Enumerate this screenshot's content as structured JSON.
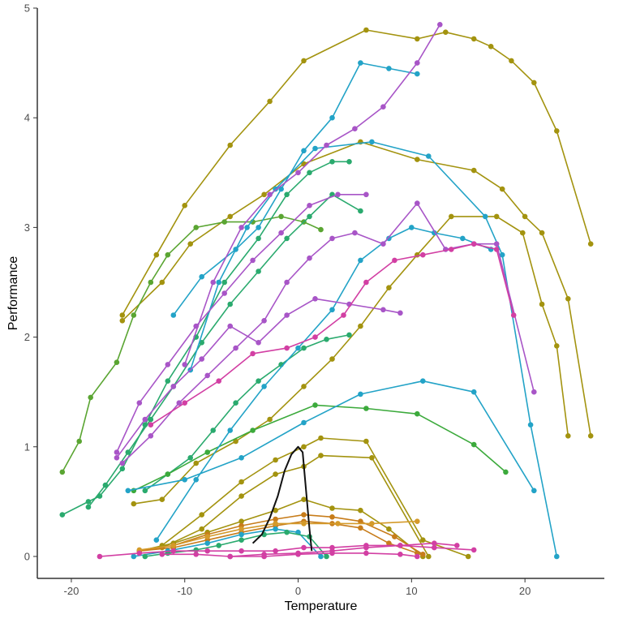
{
  "chart_data": {
    "type": "line",
    "title": "",
    "xlabel": "Temperature",
    "ylabel": "Performance",
    "xlim": [
      -23,
      27
    ],
    "ylim": [
      -0.2,
      5.0
    ],
    "x_ticks": [
      -20,
      -10,
      0,
      10,
      20
    ],
    "y_ticks": [
      0,
      1,
      2,
      3,
      4,
      5
    ],
    "grid": false,
    "legend": "none",
    "axis_color": "#333333",
    "series": [
      {
        "color": "#A3930F",
        "x": [
          -15.5,
          -12.5,
          -10,
          -6,
          -2.5,
          0.5,
          6,
          10.5,
          13,
          15.5,
          17,
          18.8,
          20.8,
          22.8,
          25.8
        ],
        "y": [
          2.2,
          2.75,
          3.2,
          3.75,
          4.15,
          4.52,
          4.8,
          4.72,
          4.78,
          4.72,
          4.65,
          4.52,
          4.32,
          3.88,
          2.85
        ]
      },
      {
        "color": "#A3930F",
        "x": [
          -15.5,
          -12,
          -9.5,
          -6,
          -3,
          0.5,
          5.5,
          10.5,
          15.5,
          18,
          20,
          21.5,
          23.8,
          25.8
        ],
        "y": [
          2.15,
          2.5,
          2.85,
          3.1,
          3.3,
          3.58,
          3.78,
          3.62,
          3.52,
          3.35,
          3.1,
          2.95,
          2.35,
          1.1
        ]
      },
      {
        "color": "#A3930F",
        "x": [
          -14.5,
          -12,
          -9,
          -5.5,
          -2.5,
          0.5,
          3,
          5.5,
          8,
          10.5,
          13.5,
          17.5,
          19.8,
          21.5,
          22.8,
          23.8
        ],
        "y": [
          0.48,
          0.52,
          0.85,
          1.05,
          1.25,
          1.55,
          1.8,
          2.1,
          2.45,
          2.75,
          3.1,
          3.1,
          2.95,
          2.3,
          1.92,
          1.1
        ]
      },
      {
        "color": "#A3930F",
        "x": [
          -12,
          -8.5,
          -5,
          -2,
          0.5,
          2,
          6,
          11,
          15
        ],
        "y": [
          0.1,
          0.38,
          0.68,
          0.88,
          1.0,
          1.08,
          1.05,
          0.15,
          0.0
        ]
      },
      {
        "color": "#A3930F",
        "x": [
          -12,
          -8.5,
          -5,
          -2,
          0.5,
          2,
          6.5,
          11.5
        ],
        "y": [
          0.08,
          0.25,
          0.55,
          0.75,
          0.82,
          0.92,
          0.9,
          0.0
        ]
      },
      {
        "color": "#A3930F",
        "x": [
          -14,
          -11,
          -8,
          -5,
          -2,
          0.5,
          3,
          5.5,
          8,
          11
        ],
        "y": [
          0.05,
          0.12,
          0.22,
          0.32,
          0.42,
          0.52,
          0.44,
          0.42,
          0.25,
          0.0
        ]
      },
      {
        "color": "#C77C1A",
        "x": [
          -14,
          -11,
          -8,
          -5,
          -2,
          0.5,
          3,
          5.5,
          8.5,
          11
        ],
        "y": [
          0.05,
          0.1,
          0.2,
          0.28,
          0.34,
          0.38,
          0.36,
          0.32,
          0.18,
          0.02
        ]
      },
      {
        "color": "#C77C1A",
        "x": [
          -14,
          -11,
          -8,
          -5,
          -2,
          0.5,
          3,
          5.5,
          8,
          10.5
        ],
        "y": [
          0.05,
          0.08,
          0.15,
          0.22,
          0.28,
          0.32,
          0.3,
          0.26,
          0.12,
          0.03
        ]
      },
      {
        "color": "#D49A2A",
        "x": [
          -14,
          -11,
          -8,
          -5,
          -2,
          0.5,
          3.5,
          6.5,
          10.5
        ],
        "y": [
          0.06,
          0.1,
          0.18,
          0.25,
          0.3,
          0.3,
          0.3,
          0.3,
          0.32
        ]
      },
      {
        "color": "#5AA532",
        "x": [
          -20.8,
          -19.3,
          -18.3,
          -16,
          -14.5,
          -13,
          -11.5,
          -9,
          -6.5,
          -4,
          -1.5,
          0.5,
          2
        ],
        "y": [
          0.77,
          1.05,
          1.45,
          1.77,
          2.2,
          2.5,
          2.75,
          3.0,
          3.05,
          3.05,
          3.1,
          3.05,
          2.98
        ]
      },
      {
        "color": "#2AAA6E",
        "x": [
          -20.8,
          -18.5,
          -17.5,
          -15.5,
          -13.5,
          -11.5,
          -9,
          -6.5,
          -3.5,
          -1,
          1,
          3,
          4.5
        ],
        "y": [
          0.38,
          0.5,
          0.55,
          0.8,
          1.2,
          1.6,
          2.0,
          2.5,
          2.9,
          3.3,
          3.5,
          3.6,
          3.6
        ]
      },
      {
        "color": "#2AAA6E",
        "x": [
          -13.5,
          -11.5,
          -9.5,
          -7.5,
          -5.5,
          -3.5,
          -1.5,
          0.5,
          2.5,
          4.5
        ],
        "y": [
          0.6,
          0.75,
          0.9,
          1.15,
          1.4,
          1.6,
          1.75,
          1.9,
          1.98,
          2.02
        ]
      },
      {
        "color": "#3CAA3C",
        "x": [
          -14.5,
          -11.5,
          -8,
          -4,
          1.5,
          6,
          10.5,
          15.5,
          18.3
        ],
        "y": [
          0.6,
          0.75,
          0.95,
          1.15,
          1.38,
          1.35,
          1.3,
          1.02,
          0.77
        ]
      },
      {
        "color": "#2AAA6E",
        "x": [
          -18.5,
          -17,
          -15,
          -13,
          -11,
          -8.5,
          -6,
          -3.5,
          -1,
          1,
          3,
          5.5
        ],
        "y": [
          0.45,
          0.65,
          0.95,
          1.25,
          1.55,
          1.95,
          2.3,
          2.6,
          2.9,
          3.1,
          3.3,
          3.15
        ]
      },
      {
        "color": "#23A3C7",
        "x": [
          -11,
          -8.5,
          -5.5,
          -3.5,
          -1.5,
          0.5,
          3,
          5.5,
          8,
          10.5
        ],
        "y": [
          2.2,
          2.55,
          2.8,
          3.0,
          3.35,
          3.7,
          4.0,
          4.5,
          4.45,
          4.4
        ]
      },
      {
        "color": "#23A3C7",
        "x": [
          -9.5,
          -7,
          -4.5,
          -2,
          1.5,
          6.5,
          11.5,
          16.5,
          18,
          20.5,
          22.8
        ],
        "y": [
          1.7,
          2.5,
          3.0,
          3.35,
          3.72,
          3.78,
          3.65,
          3.1,
          2.75,
          1.2,
          0.0
        ]
      },
      {
        "color": "#23A3C7",
        "x": [
          -12.5,
          -9,
          -6,
          -3,
          0,
          3,
          5.5,
          8,
          10,
          12,
          14.5,
          17
        ],
        "y": [
          0.15,
          0.7,
          1.15,
          1.55,
          1.9,
          2.25,
          2.7,
          2.9,
          3.0,
          2.95,
          2.9,
          2.8
        ]
      },
      {
        "color": "#23A3C7",
        "x": [
          -15,
          -10,
          -5,
          0.5,
          5.5,
          11,
          15.5,
          20.8
        ],
        "y": [
          0.6,
          0.7,
          0.9,
          1.22,
          1.48,
          1.6,
          1.5,
          0.6
        ]
      },
      {
        "color": "#23A3C7",
        "x": [
          -14.5,
          -11.5,
          -8,
          -5,
          -2,
          0,
          2
        ],
        "y": [
          0.0,
          0.05,
          0.12,
          0.2,
          0.25,
          0.22,
          0.0
        ]
      },
      {
        "color": "#2AAA6E",
        "x": [
          -13.5,
          -11.5,
          -9,
          -7,
          -5,
          -3,
          -1,
          1,
          2.5
        ],
        "y": [
          0.0,
          0.03,
          0.06,
          0.1,
          0.15,
          0.2,
          0.22,
          0.18,
          0.0
        ]
      },
      {
        "color": "#A855C7",
        "x": [
          -16,
          -14,
          -11.5,
          -9,
          -6.5,
          -4,
          -1.5,
          1,
          3.5,
          6
        ],
        "y": [
          0.95,
          1.4,
          1.75,
          2.1,
          2.4,
          2.7,
          2.95,
          3.2,
          3.3,
          3.3
        ]
      },
      {
        "color": "#A855C7",
        "x": [
          -16,
          -13.5,
          -11,
          -8.5,
          -6,
          -3.5,
          -1,
          1.5,
          4.5,
          7.5,
          9
        ],
        "y": [
          0.9,
          1.25,
          1.55,
          1.8,
          2.1,
          1.95,
          2.2,
          2.35,
          2.3,
          2.25,
          2.22
        ]
      },
      {
        "color": "#A855C7",
        "x": [
          -10,
          -7.5,
          -5,
          -2.5,
          0,
          2.5,
          5,
          7.5,
          10.5,
          12.5
        ],
        "y": [
          1.75,
          2.5,
          3.0,
          3.3,
          3.5,
          3.75,
          3.9,
          4.1,
          4.5,
          4.85
        ]
      },
      {
        "color": "#A855C7",
        "x": [
          -15.5,
          -13,
          -10.5,
          -8,
          -5.5,
          -3,
          -1,
          1,
          3,
          5,
          7.5,
          10.5,
          13,
          15.5,
          17.5,
          20.8
        ],
        "y": [
          0.85,
          1.1,
          1.4,
          1.65,
          1.9,
          2.15,
          2.5,
          2.72,
          2.9,
          2.95,
          2.85,
          3.22,
          2.8,
          2.85,
          2.85,
          1.5
        ]
      },
      {
        "color": "#D23FA3",
        "x": [
          -13,
          -10,
          -7,
          -4,
          -1,
          1.5,
          4,
          6,
          8.5,
          11,
          13.5,
          15.5,
          17.5,
          19
        ],
        "y": [
          1.2,
          1.4,
          1.6,
          1.85,
          1.9,
          2.0,
          2.2,
          2.5,
          2.7,
          2.75,
          2.8,
          2.85,
          2.8,
          2.2
        ]
      },
      {
        "color": "#D23FA3",
        "x": [
          -17.5,
          -14,
          -11,
          -8,
          -5,
          -2,
          0.5,
          3,
          6,
          9,
          12,
          15.5
        ],
        "y": [
          0.0,
          0.03,
          0.05,
          0.05,
          0.05,
          0.05,
          0.08,
          0.08,
          0.1,
          0.1,
          0.08,
          0.06
        ]
      },
      {
        "color": "#D23FA3",
        "x": [
          -12,
          -9,
          -6,
          -3,
          0,
          3,
          6,
          9,
          12,
          14
        ],
        "y": [
          0.02,
          0.02,
          0.0,
          0.02,
          0.03,
          0.05,
          0.08,
          0.1,
          0.12,
          0.1
        ]
      },
      {
        "color": "#D23FA3",
        "x": [
          -6,
          -3,
          0,
          3,
          6,
          9,
          10.5
        ],
        "y": [
          0.0,
          0.0,
          0.02,
          0.03,
          0.03,
          0.02,
          0.0
        ]
      },
      {
        "color": "#111111",
        "markers": false,
        "x": [
          -4,
          -3.2,
          -2.5,
          -1.8,
          -1.2,
          -0.6,
          0,
          0.4,
          0.7,
          1.0,
          1.2
        ],
        "y": [
          0.12,
          0.2,
          0.35,
          0.55,
          0.78,
          0.93,
          1.0,
          0.95,
          0.6,
          0.25,
          0.05
        ]
      }
    ]
  }
}
